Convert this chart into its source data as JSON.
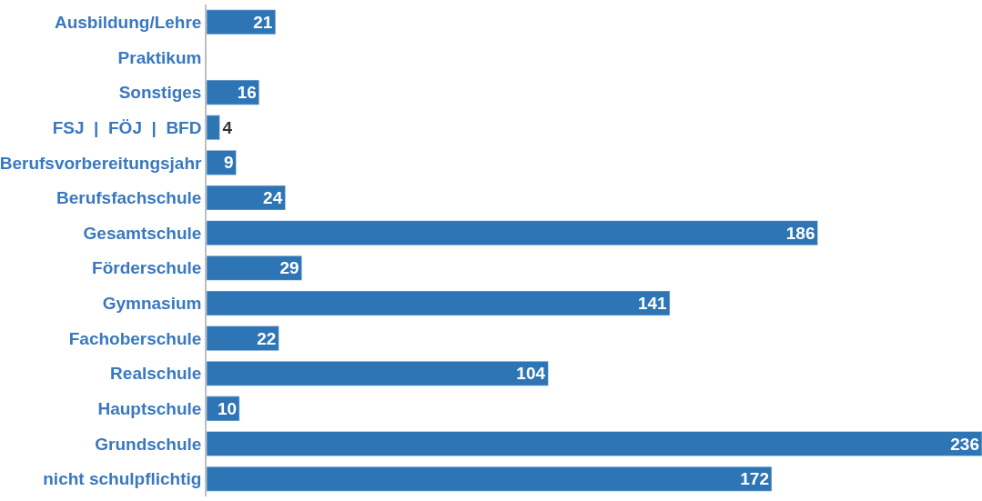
{
  "chart_data": {
    "type": "bar",
    "orientation": "horizontal",
    "data_labels": true,
    "color": "#2e75b6",
    "categories": [
      "Ausbildung/Lehre",
      "Praktikum",
      "Sonstiges",
      "FSJ  |  FÖJ  |  BFD",
      "Berufsvorbereitungsjahr",
      "Berufsfachschule",
      "Gesamtschule",
      "Förderschule",
      "Gymnasium",
      "Fachoberschule",
      "Realschule",
      "Hauptschule",
      "Grundschule",
      "nicht schulpflichtig"
    ],
    "values": [
      21,
      null,
      16,
      4,
      9,
      24,
      186,
      29,
      141,
      22,
      104,
      10,
      236,
      172
    ]
  }
}
